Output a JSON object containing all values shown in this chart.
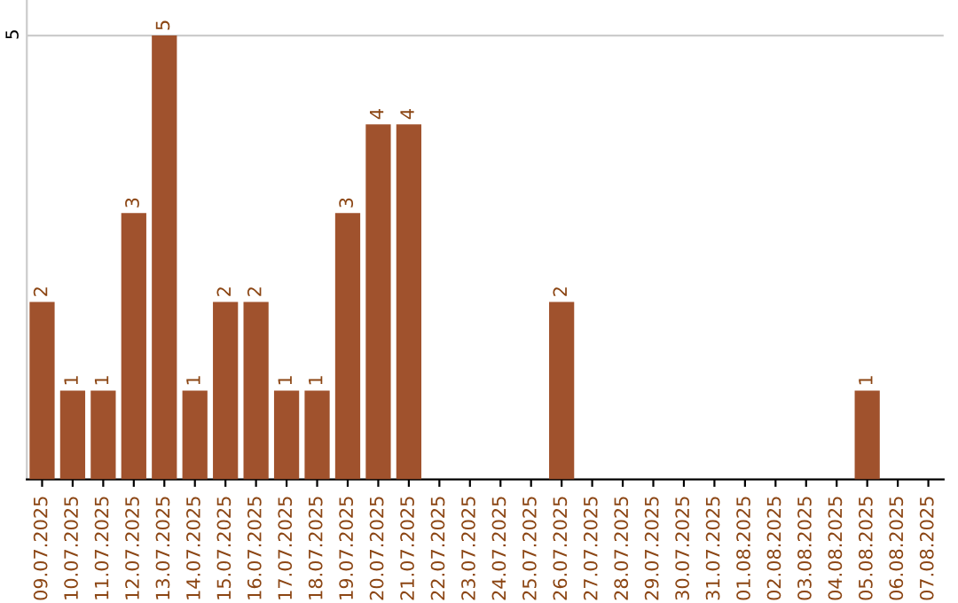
{
  "chart_data": {
    "type": "bar",
    "categories": [
      "09.07.2025",
      "10.07.2025",
      "11.07.2025",
      "12.07.2025",
      "13.07.2025",
      "14.07.2025",
      "15.07.2025",
      "16.07.2025",
      "17.07.2025",
      "18.07.2025",
      "19.07.2025",
      "20.07.2025",
      "21.07.2025",
      "22.07.2025",
      "23.07.2025",
      "24.07.2025",
      "25.07.2025",
      "26.07.2025",
      "27.07.2025",
      "28.07.2025",
      "29.07.2025",
      "30.07.2025",
      "31.07.2025",
      "01.08.2025",
      "02.08.2025",
      "03.08.2025",
      "04.08.2025",
      "05.08.2025",
      "06.08.2025",
      "07.08.2025"
    ],
    "values": [
      2,
      1,
      1,
      3,
      5,
      1,
      2,
      2,
      1,
      1,
      3,
      4,
      4,
      0,
      0,
      0,
      0,
      2,
      0,
      0,
      0,
      0,
      0,
      0,
      0,
      0,
      0,
      1,
      0,
      0
    ],
    "value_labels": [
      "2",
      "1",
      "1",
      "3",
      "5",
      "1",
      "2",
      "2",
      "1",
      "1",
      "3",
      "4",
      "4",
      null,
      null,
      null,
      null,
      "2",
      null,
      null,
      null,
      null,
      null,
      null,
      null,
      null,
      null,
      "1",
      null,
      null
    ],
    "color": "#a0522d",
    "ylim": [
      0,
      5.4
    ],
    "yticks": [
      5
    ],
    "grid": "y",
    "legend": false
  }
}
